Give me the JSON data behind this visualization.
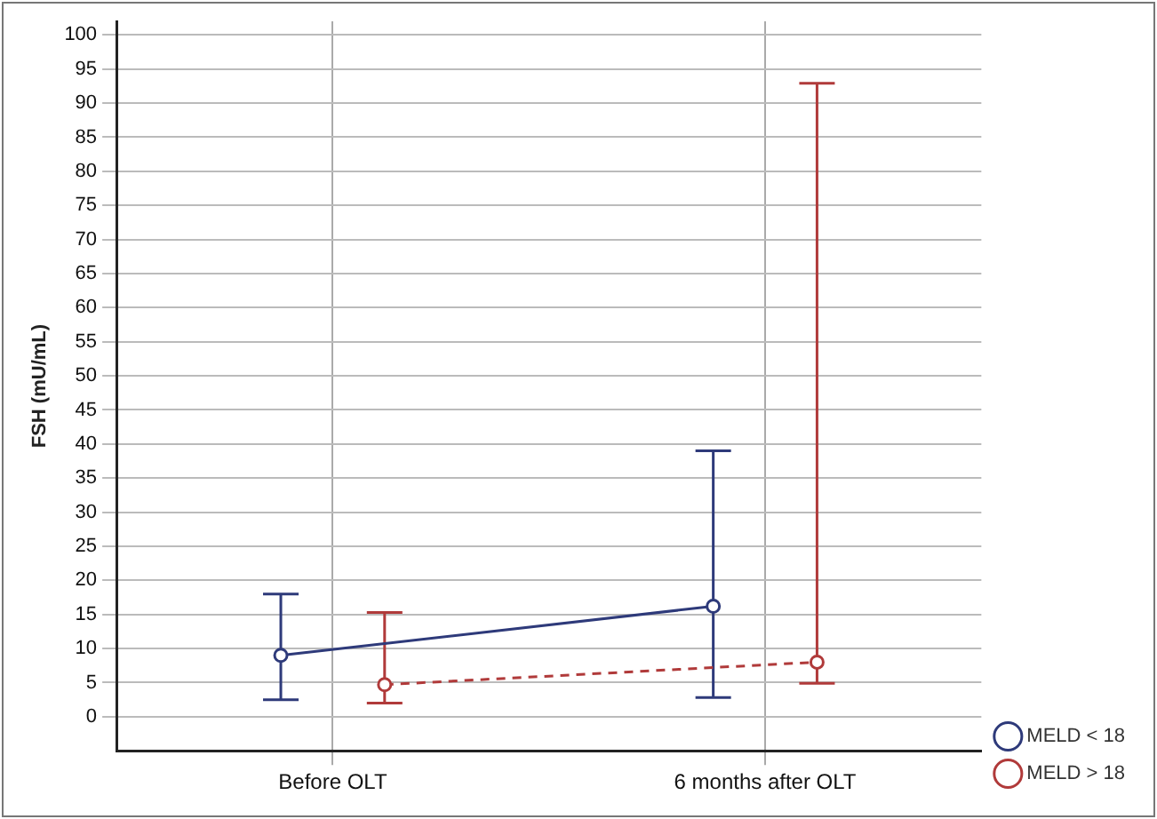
{
  "chart_data": {
    "type": "line",
    "ylabel": "FSH (mU/mL)",
    "categories": [
      "Before OLT",
      "6 months after OLT"
    ],
    "series": [
      {
        "name": "MELD < 18",
        "color": "#2e3a7a",
        "values": [
          9,
          16.2
        ],
        "errors": [
          [
            2.5,
            18
          ],
          [
            2.8,
            39
          ]
        ],
        "line_style": "solid"
      },
      {
        "name": "MELD > 18",
        "color": "#b03a3a",
        "values": [
          4.7,
          8
        ],
        "errors": [
          [
            2,
            15.3
          ],
          [
            4.9,
            92.9
          ]
        ],
        "line_style": "dashed"
      }
    ],
    "ylim": [
      -5,
      102
    ],
    "yticks": [
      0,
      5,
      10,
      15,
      20,
      25,
      30,
      35,
      40,
      45,
      50,
      55,
      60,
      65,
      70,
      75,
      80,
      85,
      90,
      95,
      100
    ],
    "grid": true,
    "legend": "bottom right",
    "marker": "circle"
  }
}
